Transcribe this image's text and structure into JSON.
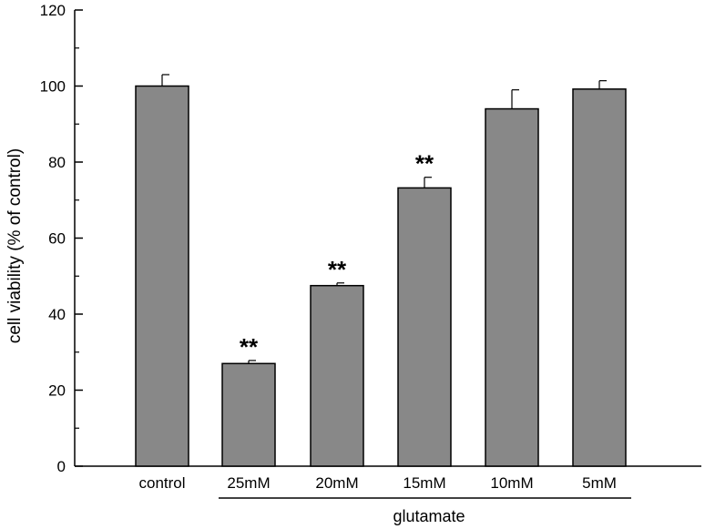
{
  "chart_data": {
    "type": "bar",
    "title": "",
    "xlabel": "",
    "ylabel": "cell viability (% of control)",
    "ylim": [
      0,
      120
    ],
    "yticks": [
      0,
      20,
      40,
      60,
      80,
      100,
      120
    ],
    "yticklabels": [
      "0",
      "20",
      "40",
      "60",
      "80",
      "100",
      "120"
    ],
    "categories": [
      "control",
      "25mM",
      "20mM",
      "15mM",
      "10mM",
      "5mM"
    ],
    "values": [
      100,
      27,
      47.5,
      73.2,
      94,
      99.2
    ],
    "errors": [
      3,
      0.8,
      0.7,
      2.8,
      5,
      2.2
    ],
    "annotations": [
      "",
      "**",
      "**",
      "**",
      "",
      ""
    ],
    "group_label": "glutamate",
    "group_categories": [
      "25mM",
      "20mM",
      "15mM",
      "10mM",
      "5mM"
    ],
    "bar_color": "#888888",
    "grid": false
  }
}
